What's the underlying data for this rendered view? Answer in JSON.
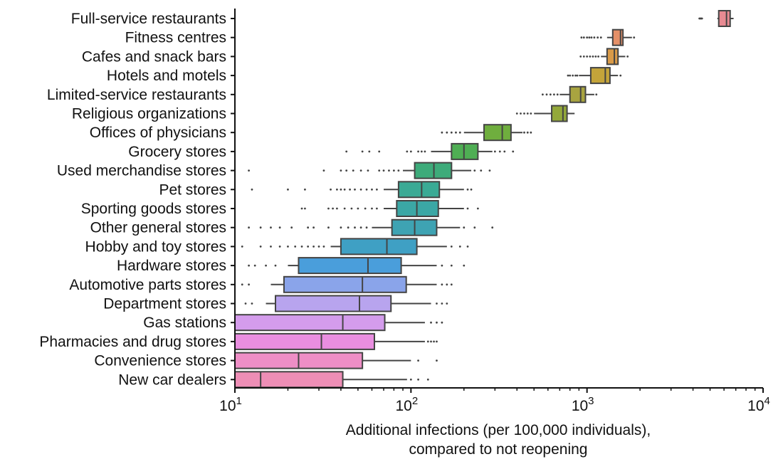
{
  "chart_data": {
    "type": "box",
    "orientation": "horizontal",
    "x_scale": "log",
    "xlim": [
      10,
      10000
    ],
    "x_ticks": [
      {
        "value": 10,
        "base": "10",
        "exp": "1"
      },
      {
        "value": 100,
        "base": "10",
        "exp": "2"
      },
      {
        "value": 1000,
        "base": "10",
        "exp": "3"
      },
      {
        "value": 10000,
        "base": "10",
        "exp": "4"
      }
    ],
    "xlabel_lines": [
      "Additional infections (per 100,000 individuals),",
      "compared to not reopening"
    ],
    "categories": [
      "Full-service restaurants",
      "Fitness centres",
      "Cafes and snack bars",
      "Hotels and motels",
      "Limited-service restaurants",
      "Religious organizations",
      "Offices of physicians",
      "Grocery stores",
      "Used merchandise stores",
      "Pet stores",
      "Sporting goods stores",
      "Other general stores",
      "Hobby and toy stores",
      "Hardware stores",
      "Automotive parts stores",
      "Department stores",
      "Gas stations",
      "Pharmacies and drug stores",
      "Convenience stores",
      "New car dealers"
    ],
    "series": [
      {
        "name": "Full-service restaurants",
        "color": "#e88a92",
        "q1": 5600,
        "median": 6200,
        "q3": 6500,
        "whisker_low": 5500,
        "whisker_high": 6800,
        "outliers": [
          4350,
          4400,
          4450,
          4500
        ]
      },
      {
        "name": "Fitness centres",
        "color": "#e59068",
        "q1": 1400,
        "median": 1550,
        "q3": 1600,
        "whisker_low": 1300,
        "whisker_high": 1800,
        "outliers": [
          930,
          960,
          1000,
          1030,
          1060,
          1100,
          1150,
          1200,
          1850
        ]
      },
      {
        "name": "Cafes and snack bars",
        "color": "#d99a48",
        "q1": 1300,
        "median": 1430,
        "q3": 1500,
        "whisker_low": 1200,
        "whisker_high": 1650,
        "outliers": [
          920,
          960,
          1000,
          1040,
          1080,
          1120,
          1160,
          1700
        ]
      },
      {
        "name": "Hotels and motels",
        "color": "#c4a43a",
        "q1": 1050,
        "median": 1270,
        "q3": 1350,
        "whisker_low": 900,
        "whisker_high": 1500,
        "outliers": [
          780,
          800,
          830,
          860,
          880,
          1550
        ]
      },
      {
        "name": "Limited-service restaurants",
        "color": "#a8a440",
        "q1": 800,
        "median": 920,
        "q3": 980,
        "whisker_low": 700,
        "whisker_high": 1100,
        "outliers": [
          560,
          590,
          620,
          650,
          680,
          1130
        ]
      },
      {
        "name": "Religious organizations",
        "color": "#93a83a",
        "q1": 630,
        "median": 730,
        "q3": 770,
        "whisker_low": 500,
        "whisker_high": 850,
        "outliers": [
          400,
          420,
          440,
          460,
          480
        ]
      },
      {
        "name": "Offices of physicians",
        "color": "#6fae3e",
        "q1": 260,
        "median": 330,
        "q3": 370,
        "whisker_low": 200,
        "whisker_high": 430,
        "outliers": [
          150,
          160,
          170,
          180,
          190,
          440,
          460,
          480
        ]
      },
      {
        "name": "Grocery stores",
        "color": "#4fae54",
        "q1": 170,
        "median": 200,
        "q3": 240,
        "whisker_low": 130,
        "whisker_high": 290,
        "outliers": [
          43,
          53,
          58,
          66,
          95,
          100,
          110,
          115,
          120,
          300,
          320,
          340,
          380
        ]
      },
      {
        "name": "Used merchandise stores",
        "color": "#3dab7a",
        "q1": 105,
        "median": 135,
        "q3": 170,
        "whisker_low": 90,
        "whisker_high": 220,
        "outliers": [
          12,
          32,
          40,
          43,
          47,
          52,
          57,
          66,
          70,
          75,
          80,
          85,
          230,
          250,
          280
        ]
      },
      {
        "name": "Pet stores",
        "color": "#3aaa95",
        "q1": 85,
        "median": 115,
        "q3": 145,
        "whisker_low": 70,
        "whisker_high": 200,
        "outliers": [
          12.5,
          20,
          25,
          35,
          38,
          40,
          42,
          45,
          48,
          52,
          56,
          60,
          64,
          210,
          220
        ]
      },
      {
        "name": "Sporting goods stores",
        "color": "#3ba7a5",
        "q1": 83,
        "median": 108,
        "q3": 143,
        "whisker_low": 70,
        "whisker_high": 200,
        "outliers": [
          24,
          25,
          34,
          36,
          38,
          42,
          46,
          50,
          55,
          60,
          64,
          210,
          240
        ]
      },
      {
        "name": "Other general stores",
        "color": "#3ea3b3",
        "q1": 78,
        "median": 105,
        "q3": 140,
        "whisker_low": 60,
        "whisker_high": 190,
        "outliers": [
          12,
          14,
          16,
          18,
          21,
          26,
          28,
          34,
          40,
          44,
          48,
          52,
          56,
          200,
          230,
          290
        ]
      },
      {
        "name": "Hobby and toy stores",
        "color": "#3fa0c4",
        "q1": 40,
        "median": 73,
        "q3": 108,
        "whisker_low": 35,
        "whisker_high": 160,
        "outliers": [
          11,
          14,
          16,
          18,
          20,
          22,
          24,
          26,
          28,
          30,
          32,
          170,
          190,
          210
        ]
      },
      {
        "name": "Hardware stores",
        "color": "#4a9edb",
        "q1": 23,
        "median": 57,
        "q3": 88,
        "whisker_low": 20,
        "whisker_high": 140,
        "outliers": [
          12,
          13,
          15,
          17,
          150,
          170,
          200
        ]
      },
      {
        "name": "Automotive parts stores",
        "color": "#8aa4ea",
        "q1": 19,
        "median": 53,
        "q3": 94,
        "whisker_low": 16,
        "whisker_high": 140,
        "outliers": [
          11,
          12,
          150,
          160,
          170
        ]
      },
      {
        "name": "Department stores",
        "color": "#b8a4ee",
        "q1": 17,
        "median": 51,
        "q3": 77,
        "whisker_low": 15,
        "whisker_high": 130,
        "outliers": [
          11.5,
          12.5,
          140,
          150,
          160
        ]
      },
      {
        "name": "Gas stations",
        "color": "#d49cec",
        "q1": 10,
        "median": 41,
        "q3": 71,
        "whisker_low": 10,
        "whisker_high": 120,
        "outliers": [
          130,
          140,
          150
        ]
      },
      {
        "name": "Pharmacies and drug stores",
        "color": "#e98ee0",
        "q1": 10,
        "median": 31,
        "q3": 62,
        "whisker_low": 10,
        "whisker_high": 120,
        "outliers": [
          125,
          130,
          135,
          140
        ]
      },
      {
        "name": "Convenience stores",
        "color": "#ee8ec6",
        "q1": 10,
        "median": 23,
        "q3": 53,
        "whisker_low": 10,
        "whisker_high": 100,
        "outliers": [
          110,
          140
        ]
      },
      {
        "name": "New car dealers",
        "color": "#ee8eb6",
        "q1": 10,
        "median": 14,
        "q3": 41,
        "whisker_low": 10,
        "whisker_high": 95,
        "outliers": [
          100,
          110,
          125
        ]
      }
    ]
  }
}
